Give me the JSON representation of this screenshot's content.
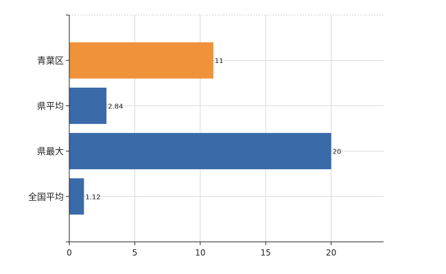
{
  "chart_data": {
    "type": "bar",
    "orientation": "horizontal",
    "categories": [
      "青葉区",
      "県平均",
      "県最大",
      "全国平均"
    ],
    "values": [
      11,
      2.84,
      20,
      1.12
    ],
    "data_labels": [
      "11",
      "2.84",
      "20",
      "1.12"
    ],
    "colors": [
      "#f0923a",
      "#3a6aa8",
      "#3a6aa8",
      "#3a6aa8"
    ],
    "xlim": [
      0,
      24
    ],
    "x_ticks": [
      0,
      5,
      10,
      15,
      20
    ],
    "x_tick_labels": [
      "0",
      "5",
      "10",
      "15",
      "20"
    ],
    "grid": true,
    "title": "",
    "xlabel": "",
    "ylabel": ""
  }
}
